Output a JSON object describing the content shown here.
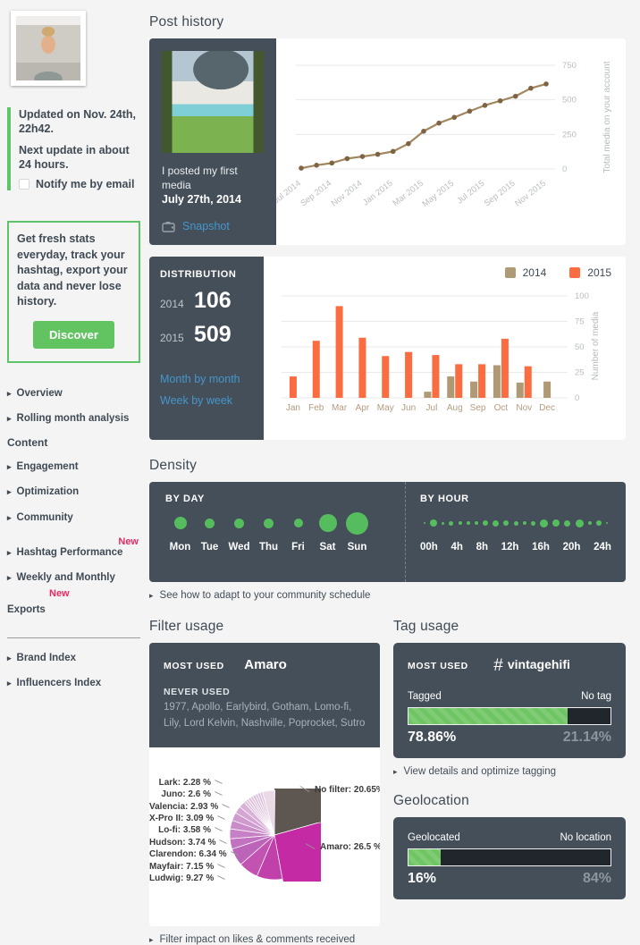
{
  "colors": {
    "accent_green": "#5fc368",
    "series_2014_tan": "#b09a76",
    "series_2015_orange": "#fb6d41",
    "link_blue": "#4596cc",
    "badge_pink": "#e82a64",
    "dark_panel": "#454f59",
    "line_brown": "#a1875f"
  },
  "sidebar": {
    "updated_line": "Updated on Nov. 24th, 22h42.",
    "next_update": "Next update in about 24 hours.",
    "notify": "Notify me by email",
    "promo_text": "Get fresh stats everyday, track your hashtag, export your data and never lose history.",
    "promo_button": "Discover",
    "nav": [
      {
        "label": "Overview"
      },
      {
        "label": "Rolling month analysis"
      },
      {
        "label": "Content"
      },
      {
        "label": "Engagement"
      },
      {
        "label": "Optimization"
      },
      {
        "label": "Community"
      },
      {
        "label": "Hashtag Performance",
        "badge": "New"
      },
      {
        "label_line1": "Weekly and Monthly",
        "badge": "New",
        "label_line2": "Exports"
      }
    ],
    "nav_secondary": [
      {
        "label": "Brand Index"
      },
      {
        "label": "Influencers Index"
      }
    ]
  },
  "post_history": {
    "title": "Post history",
    "first_media_text": "I posted my first media",
    "first_media_date": "July 27th, 2014",
    "snapshot": "Snapshot"
  },
  "distribution": {
    "heading": "DISTRIBUTION",
    "rows": [
      {
        "year": "2014",
        "count": "106"
      },
      {
        "year": "2015",
        "count": "509"
      }
    ],
    "links": [
      "Month by month",
      "Week by week"
    ]
  },
  "density": {
    "title": "Density",
    "by_day": {
      "heading": "BY DAY",
      "days": [
        {
          "label": "Mon",
          "size": 14
        },
        {
          "label": "Tue",
          "size": 11
        },
        {
          "label": "Wed",
          "size": 11
        },
        {
          "label": "Thu",
          "size": 11
        },
        {
          "label": "Fri",
          "size": 10
        },
        {
          "label": "Sat",
          "size": 20
        },
        {
          "label": "Sun",
          "size": 25
        }
      ]
    },
    "by_hour": {
      "heading": "BY HOUR",
      "labels": [
        "00h",
        "4h",
        "8h",
        "12h",
        "16h",
        "20h",
        "24h"
      ],
      "dot_sizes": [
        2,
        8,
        3,
        5,
        4,
        4,
        4,
        6,
        7,
        6,
        5,
        4,
        5,
        9,
        8,
        7,
        9,
        4,
        6,
        2
      ]
    },
    "caption": "See how to adapt to your community schedule"
  },
  "filter_usage": {
    "title": "Filter usage",
    "most_used_label": "MOST USED",
    "most_used": "Amaro",
    "never_used_label": "NEVER USED",
    "never_used": "1977, Apollo, Earlybird, Gotham, Lomo-fi, Lily, Lord Kelvin, Nashville, Poprocket, Sutro",
    "caption": "Filter impact on likes & comments received"
  },
  "tag_usage": {
    "title": "Tag usage",
    "most_used_label": "MOST USED",
    "hash": "#",
    "most_used": "vintagehifi",
    "left_label": "Tagged",
    "right_label": "No tag",
    "tagged_pct": 78.86,
    "tagged_display": "78.86%",
    "untagged_display": "21.14%",
    "caption": "View details and optimize tagging"
  },
  "geolocation": {
    "title": "Geolocation",
    "left_label": "Geolocated",
    "right_label": "No location",
    "geo_pct": 16,
    "geo_display": "16%",
    "no_geo_display": "84%"
  },
  "chart_data": [
    {
      "id": "post-history-line",
      "type": "line",
      "x": [
        "Jul 2014",
        "Aug 2014",
        "Sep 2014",
        "Oct 2014",
        "Nov 2014",
        "Dec 2014",
        "Jan 2015",
        "Feb 2015",
        "Mar 2015",
        "Apr 2015",
        "May 2015",
        "Jun 2015",
        "Jul 2015",
        "Aug 2015",
        "Sep 2015",
        "Oct 2015",
        "Nov 2015"
      ],
      "tick_every": 2,
      "values": [
        6,
        27,
        43,
        75,
        90,
        106,
        127,
        183,
        273,
        332,
        373,
        418,
        460,
        493,
        526,
        584,
        615
      ],
      "ylabel": "Total media on your account",
      "yticks": [
        0,
        250,
        500,
        750
      ],
      "ylim": [
        0,
        750
      ],
      "line_color": "#a1875f",
      "dot_color": "#7e6443",
      "grid": true
    },
    {
      "id": "distribution-bars",
      "type": "bar",
      "categories": [
        "Jan",
        "Feb",
        "Mar",
        "Apr",
        "May",
        "Jun",
        "Jul",
        "Aug",
        "Sep",
        "Oct",
        "Nov",
        "Dec"
      ],
      "series": [
        {
          "name": "2014",
          "color": "#b09a76",
          "values": [
            0,
            0,
            0,
            0,
            0,
            0,
            6,
            21,
            16,
            32,
            15,
            16
          ]
        },
        {
          "name": "2015",
          "color": "#fb6d41",
          "values": [
            21,
            56,
            90,
            59,
            41,
            45,
            42,
            33,
            33,
            58,
            31,
            0
          ]
        }
      ],
      "ylabel": "Number of media",
      "yticks": [
        0,
        25,
        50,
        75,
        100
      ],
      "ylim": [
        0,
        100
      ],
      "legend_position": "top-right",
      "grid": true
    },
    {
      "id": "filter-pie",
      "type": "pie",
      "slices": [
        {
          "name": "No filter",
          "pct": 20.65,
          "display": "No filter: 20.65%",
          "color": "#5e5651",
          "label_side": "right"
        },
        {
          "name": "Amaro",
          "pct": 26.5,
          "display": "Amaro: 26.5 %",
          "color": "#c32aa3",
          "label_side": "right"
        },
        {
          "name": "Ludwig",
          "pct": 9.27,
          "display": "Ludwig: 9.27 %",
          "color": "#c041aa",
          "label_side": "left"
        },
        {
          "name": "Mayfair",
          "pct": 7.15,
          "display": "Mayfair: 7.15 %",
          "color": "#c253b1",
          "label_side": "left"
        },
        {
          "name": "Clarendon",
          "pct": 6.34,
          "display": "Clarendon: 6.34 %",
          "color": "#bc64b8",
          "label_side": "left"
        },
        {
          "name": "Hudson",
          "pct": 3.74,
          "display": "Hudson: 3.74 %",
          "color": "#c173c1",
          "label_side": "left"
        },
        {
          "name": "Lo-fi",
          "pct": 3.58,
          "display": "Lo-fi: 3.58 %",
          "color": "#c580c6",
          "label_side": "left"
        },
        {
          "name": "X-Pro II",
          "pct": 3.09,
          "display": "X-Pro II: 3.09 %",
          "color": "#ca8dca",
          "label_side": "left"
        },
        {
          "name": "Valencia",
          "pct": 2.93,
          "display": "Valencia: 2.93 %",
          "color": "#cf9ace",
          "label_side": "left"
        },
        {
          "name": "Juno",
          "pct": 2.6,
          "display": "Juno: 2.6 %",
          "color": "#d4a6d3",
          "label_side": "left"
        },
        {
          "name": "Lark",
          "pct": 2.28,
          "display": "Lark: 2.28 %",
          "color": "#d9b2d8",
          "label_side": "left"
        }
      ],
      "unlabeled_pct": 12.07
    }
  ]
}
